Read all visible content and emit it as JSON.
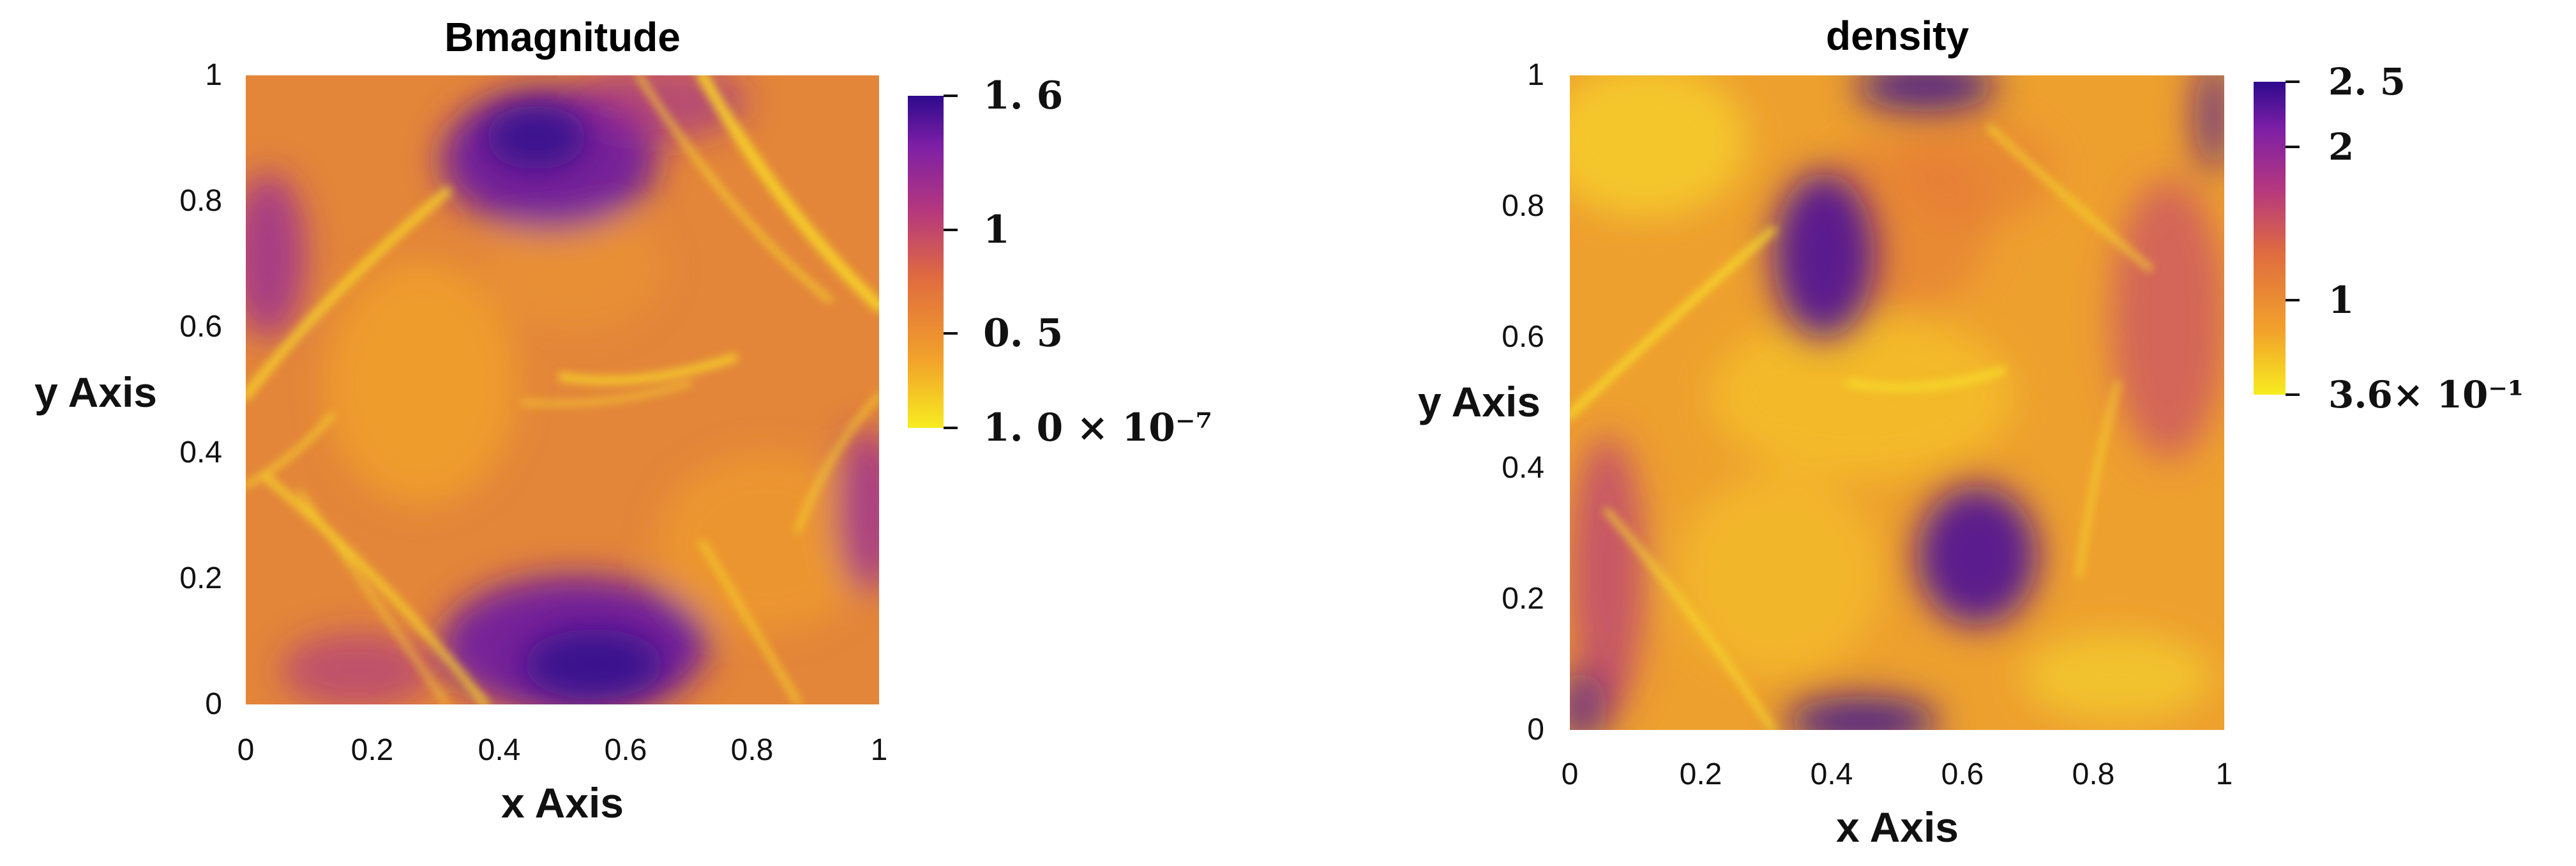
{
  "chart_data": [
    {
      "type": "heatmap",
      "title": "Bmagnitude",
      "xlabel": "x Axis",
      "ylabel": "y Axis",
      "xlim": [
        0,
        1
      ],
      "ylim": [
        0,
        1
      ],
      "x_ticks": [
        "0",
        "0.2",
        "0.4",
        "0.6",
        "0.8",
        "1"
      ],
      "y_ticks": [
        "0",
        "0.2",
        "0.4",
        "0.6",
        "0.8",
        "1"
      ],
      "colorbar": {
        "colormap": "plasma",
        "range": [
          1e-07,
          1.6
        ],
        "ticks": [
          {
            "value": 1.6,
            "label": "1. 6"
          },
          {
            "value": 1,
            "label": "1"
          },
          {
            "value": 0.5,
            "label": "0. 5"
          },
          {
            "value": 1e-07,
            "label": "1. 0 × 10⁻⁷"
          }
        ]
      }
    },
    {
      "type": "heatmap",
      "title": "density",
      "xlabel": "x Axis",
      "ylabel": "y Axis",
      "xlim": [
        0,
        1
      ],
      "ylim": [
        0,
        1
      ],
      "x_ticks": [
        "0",
        "0.2",
        "0.4",
        "0.6",
        "0.8",
        "1"
      ],
      "y_ticks": [
        "0",
        "0.2",
        "0.4",
        "0.6",
        "0.8",
        "1"
      ],
      "colorbar": {
        "colormap": "plasma",
        "scale": "log",
        "range": [
          0.36,
          2.5
        ],
        "ticks": [
          {
            "value": 2.5,
            "label": "2. 5"
          },
          {
            "value": 2,
            "label": "2"
          },
          {
            "value": 1,
            "label": "1"
          },
          {
            "value": 0.36,
            "label": "3.6× 10⁻¹"
          }
        ]
      }
    }
  ],
  "colors": {
    "plasma_dark": "#2d0a8c",
    "plasma_purple": "#7d1fa6",
    "plasma_magenta": "#b6387d",
    "plasma_orange": "#e06c3f",
    "plasma_gold": "#f2a32a",
    "plasma_yellow": "#f7ec1f"
  }
}
